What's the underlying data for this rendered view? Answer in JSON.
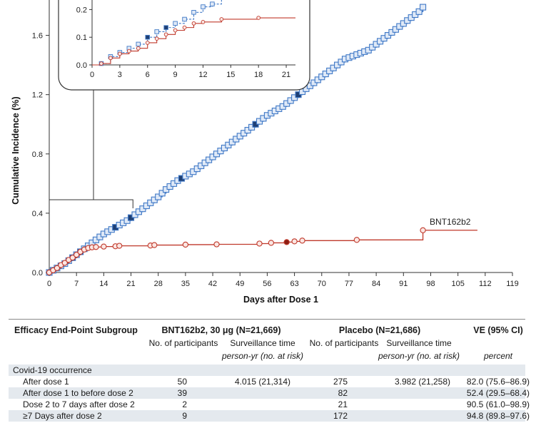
{
  "chart_data": {
    "type": "line",
    "xlabel": "Days after Dose 1",
    "ylabel": "Cumulative Incidence (%)",
    "xlim": [
      0,
      119
    ],
    "ylim": [
      0,
      1.8
    ],
    "xticks": [
      "0",
      "7",
      "14",
      "21",
      "28",
      "35",
      "42",
      "49",
      "56",
      "63",
      "70",
      "77",
      "84",
      "91",
      "98",
      "105",
      "112",
      "119"
    ],
    "yticks": [
      "0.0",
      "0.4",
      "0.8",
      "1.2",
      "1.6"
    ],
    "series": [
      {
        "name": "Placebo",
        "color": "#3f78c6",
        "x": [
          0,
          1,
          2,
          3,
          4,
          5,
          6,
          7,
          8,
          9,
          10,
          11,
          12,
          13,
          14,
          15,
          16,
          17,
          18,
          19,
          20,
          21,
          22,
          23,
          24,
          25,
          26,
          27,
          28,
          29,
          30,
          31,
          32,
          33,
          34,
          35,
          36,
          37,
          38,
          39,
          40,
          41,
          42,
          43,
          44,
          45,
          46,
          47,
          48,
          49,
          50,
          51,
          52,
          53,
          54,
          55,
          56,
          57,
          58,
          59,
          60,
          61,
          62,
          63,
          64,
          65,
          66,
          67,
          68,
          69,
          70,
          71,
          72,
          73,
          74,
          75,
          76,
          77,
          78,
          79,
          80,
          81,
          82,
          83,
          84,
          85,
          86,
          87,
          88,
          89,
          90,
          91,
          92,
          93,
          94,
          95,
          96
        ],
        "y": [
          0.0,
          0.015,
          0.03,
          0.045,
          0.06,
          0.08,
          0.1,
          0.12,
          0.14,
          0.16,
          0.18,
          0.2,
          0.22,
          0.24,
          0.26,
          0.275,
          0.29,
          0.305,
          0.32,
          0.335,
          0.35,
          0.37,
          0.39,
          0.41,
          0.43,
          0.45,
          0.47,
          0.49,
          0.51,
          0.535,
          0.56,
          0.58,
          0.6,
          0.62,
          0.635,
          0.65,
          0.665,
          0.68,
          0.7,
          0.72,
          0.74,
          0.76,
          0.78,
          0.8,
          0.82,
          0.84,
          0.86,
          0.88,
          0.9,
          0.92,
          0.94,
          0.96,
          0.98,
          1.0,
          1.02,
          1.04,
          1.06,
          1.075,
          1.09,
          1.105,
          1.12,
          1.14,
          1.16,
          1.18,
          1.2,
          1.22,
          1.24,
          1.26,
          1.28,
          1.3,
          1.32,
          1.34,
          1.36,
          1.38,
          1.4,
          1.42,
          1.44,
          1.45,
          1.46,
          1.47,
          1.48,
          1.49,
          1.5,
          1.52,
          1.54,
          1.56,
          1.58,
          1.6,
          1.62,
          1.64,
          1.66,
          1.68,
          1.7,
          1.72,
          1.74,
          1.76,
          1.79
        ]
      },
      {
        "name": "BNT162b2",
        "color": "#c0392b",
        "x": [
          0,
          1,
          2,
          3,
          4,
          5,
          6,
          7,
          8,
          9,
          10,
          11,
          12,
          14,
          17,
          18,
          26,
          27,
          35,
          43,
          54,
          57,
          61,
          63,
          65,
          79,
          96,
          110
        ],
        "y": [
          0.0,
          0.015,
          0.03,
          0.05,
          0.065,
          0.085,
          0.1,
          0.12,
          0.14,
          0.155,
          0.165,
          0.17,
          0.172,
          0.175,
          0.177,
          0.18,
          0.182,
          0.185,
          0.188,
          0.19,
          0.195,
          0.2,
          0.205,
          0.21,
          0.215,
          0.22,
          0.285,
          0.285
        ]
      }
    ],
    "annotations": [
      "BNT162b2"
    ],
    "inset": {
      "xticks": [
        "0",
        "3",
        "6",
        "9",
        "12",
        "15",
        "18",
        "21"
      ],
      "yticks": [
        "0.0",
        "0.1",
        "0.2"
      ],
      "xlim": [
        0,
        22
      ],
      "ylim": [
        0,
        0.25
      ],
      "placebo": {
        "x": [
          0,
          1,
          2,
          3,
          4,
          5,
          6,
          7,
          8,
          9,
          10,
          11,
          12,
          13,
          14
        ],
        "y": [
          0.0,
          0.005,
          0.03,
          0.045,
          0.06,
          0.075,
          0.1,
          0.12,
          0.135,
          0.15,
          0.165,
          0.19,
          0.21,
          0.22,
          0.26
        ]
      },
      "vaccine": {
        "x": [
          0,
          1,
          2,
          3,
          4,
          5,
          6,
          7,
          8,
          9,
          10,
          11,
          12,
          14,
          18,
          22
        ],
        "y": [
          0.0,
          0.005,
          0.025,
          0.04,
          0.05,
          0.06,
          0.08,
          0.095,
          0.11,
          0.125,
          0.135,
          0.15,
          0.155,
          0.165,
          0.17,
          0.17
        ]
      }
    }
  },
  "table": {
    "col_subgroup": "Efficacy End-Point Subgroup",
    "col_vaccine": "BNT162b2, 30 μg (N=21,669)",
    "col_placebo": "Placebo (N=21,686)",
    "col_ve": "VE (95% CI)",
    "sub_participants": "No. of participants",
    "sub_surveillance": "Surveillance time",
    "sub_personyr": "person-yr (no. at risk)",
    "sub_percent": "percent",
    "section": "Covid-19 occurrence",
    "rows": [
      {
        "label": "After dose 1",
        "v_n": "50",
        "v_time": "4.015 (21,314)",
        "p_n": "275",
        "p_time": "3.982 (21,258)",
        "ve": "82.0 (75.6–86.9)"
      },
      {
        "label": "After dose 1 to before dose 2",
        "v_n": "39",
        "v_time": "",
        "p_n": "82",
        "p_time": "",
        "ve": "52.4 (29.5–68.4)"
      },
      {
        "label": "Dose 2 to 7 days after dose 2",
        "v_n": "2",
        "v_time": "",
        "p_n": "21",
        "p_time": "",
        "ve": "90.5 (61.0–98.9)"
      },
      {
        "label": "≥7 Days after dose 2",
        "v_n": "9",
        "v_time": "",
        "p_n": "172",
        "p_time": "",
        "ve": "94.8 (89.8–97.6)"
      }
    ]
  }
}
